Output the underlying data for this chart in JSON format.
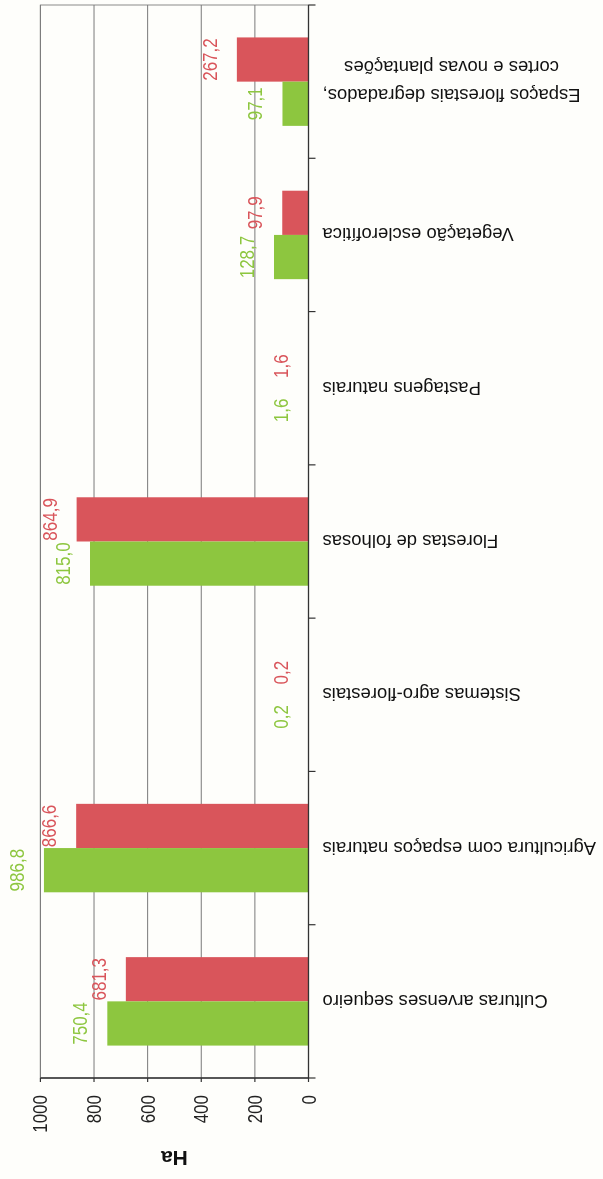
{
  "chart_data": {
    "type": "bar",
    "orientation": "horizontal",
    "xlabel": "Ha",
    "categories": [
      "Espaços florestais degradados, cortes e novas plantações",
      "Vegetação esclerofítica",
      "Pastagens naturais",
      "Florestas de folhosas",
      "Sistemas agro-florestais",
      "Agricultura com espaços naturais",
      "Culturas arvenses sequeiro"
    ],
    "xlim": [
      1000,
      0
    ],
    "xticks": [
      0,
      200,
      400,
      600,
      800,
      1000
    ],
    "grid": "x",
    "series": [
      {
        "color": "#d9555b",
        "values": [
          267.2,
          97.9,
          1.6,
          864.9,
          0.2,
          866.6,
          681.3
        ],
        "value_labels": [
          "267,2",
          "97,9",
          "1,6",
          "864,9",
          "0,2",
          "866,6",
          "681,3"
        ]
      },
      {
        "color": "#8dc63f",
        "values": [
          97.1,
          128.7,
          1.6,
          815.0,
          0.2,
          986.8,
          750.4
        ],
        "value_labels": [
          "97,1",
          "128,7",
          "1,6",
          "815,0",
          "0,2",
          "986,8",
          "750,4"
        ]
      }
    ]
  }
}
